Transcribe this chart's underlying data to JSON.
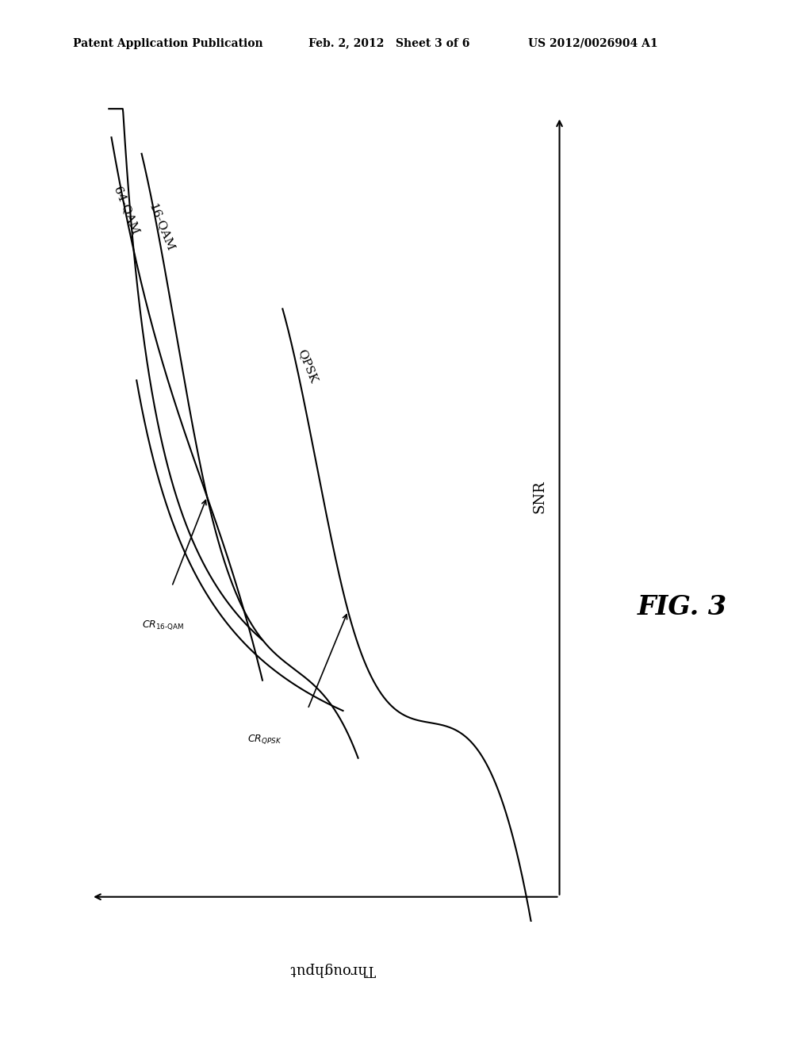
{
  "background_color": "#ffffff",
  "header_left": "Patent Application Publication",
  "header_mid": "Feb. 2, 2012   Sheet 3 of 6",
  "header_right": "US 2012/0026904 A1",
  "fig_label": "FIG. 3",
  "xlabel": "Throughput",
  "ylabel": "SNR"
}
